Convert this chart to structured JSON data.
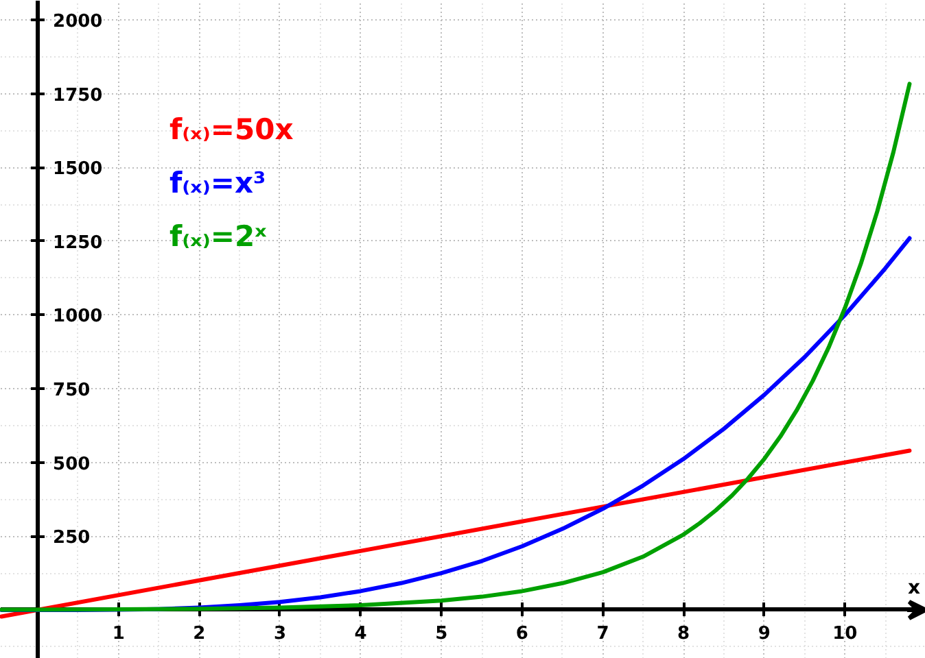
{
  "chart_data": {
    "type": "line",
    "xlabel": "x",
    "xlim": [
      -0.46,
      11.0
    ],
    "ylim": [
      -165,
      2065
    ],
    "xticks": [
      1,
      2,
      3,
      4,
      5,
      6,
      7,
      8,
      9,
      10
    ],
    "yticks": [
      250,
      500,
      750,
      1000,
      1250,
      1500,
      1750,
      2000
    ],
    "grid": true,
    "legend": "top left",
    "line_style": "solid",
    "series": [
      {
        "name": "f₍ₓ₎=50x",
        "color": "#ff0000",
        "x": [
          -0.45,
          10.8
        ],
        "values": [
          -22,
          540
        ]
      },
      {
        "name": "f₍ₓ₎=x³",
        "color": "#0000ff",
        "x": [
          -0.45,
          0,
          0.5,
          1,
          1.5,
          2,
          2.5,
          3,
          3.5,
          4,
          4.5,
          5,
          5.5,
          6,
          6.5,
          7,
          7.5,
          8,
          8.5,
          9,
          9.5,
          10,
          10.5,
          10.8
        ],
        "values": [
          0,
          0,
          0,
          1,
          3,
          8,
          16,
          27,
          43,
          64,
          91,
          125,
          166,
          216,
          275,
          343,
          422,
          512,
          614,
          729,
          857,
          1000,
          1158,
          1260
        ]
      },
      {
        "name": "f₍ₓ₎=2ˣ",
        "color": "#00a000",
        "x": [
          -0.45,
          0,
          1,
          2,
          3,
          4,
          5,
          5.5,
          6,
          6.5,
          7,
          7.5,
          8,
          8.2,
          8.4,
          8.6,
          8.8,
          9,
          9.2,
          9.4,
          9.6,
          9.8,
          10,
          10.2,
          10.4,
          10.6,
          10.8
        ],
        "values": [
          1,
          1,
          2,
          4,
          8,
          16,
          32,
          45,
          64,
          91,
          128,
          181,
          256,
          294,
          338,
          388,
          446,
          512,
          588,
          676,
          776,
          891,
          1024,
          1176,
          1351,
          1552,
          1783
        ]
      }
    ]
  }
}
